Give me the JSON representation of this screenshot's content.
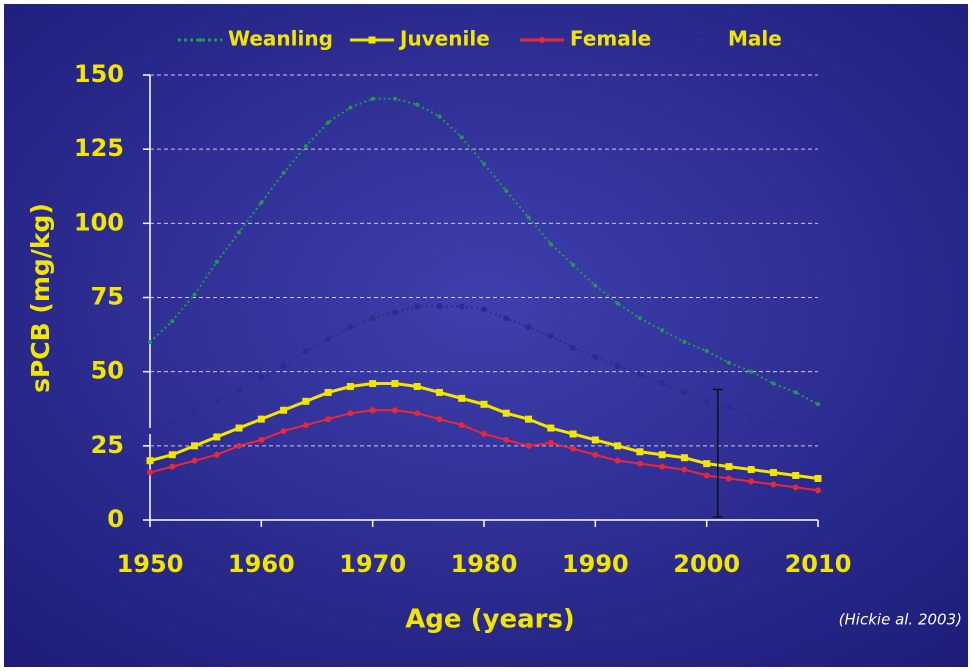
{
  "chart_data": {
    "type": "line",
    "y_label": "sPCB (mg/kg)",
    "x_label": "Age (years)",
    "source": "(Hickie al. 2003)",
    "x": [
      1950,
      1952,
      1954,
      1956,
      1958,
      1960,
      1962,
      1964,
      1966,
      1968,
      1970,
      1972,
      1974,
      1976,
      1978,
      1980,
      1982,
      1984,
      1986,
      1988,
      1990,
      1992,
      1994,
      1996,
      1998,
      2000,
      2002,
      2004,
      2006,
      2008,
      2010
    ],
    "xlim": [
      1950,
      2010
    ],
    "xticks": [
      1950,
      1960,
      1970,
      1980,
      1990,
      2000,
      2010
    ],
    "ylim": [
      0,
      150
    ],
    "yticks": [
      0,
      25,
      50,
      75,
      100,
      125,
      150
    ],
    "grid": true,
    "legend": "top",
    "series": [
      {
        "name": "Weanling",
        "color": "#1f9a52",
        "values": [
          60,
          67,
          76,
          87,
          97,
          107,
          117,
          126,
          134,
          139,
          142,
          142,
          140,
          136,
          129,
          120,
          111,
          102,
          93,
          86,
          79,
          73,
          68,
          64,
          60,
          57,
          53,
          50,
          46,
          43,
          39
        ]
      },
      {
        "name": "Juvenile",
        "color": "#f2e600",
        "values": [
          20,
          22,
          25,
          28,
          31,
          34,
          37,
          40,
          43,
          45,
          46,
          46,
          45,
          43,
          41,
          39,
          36,
          34,
          31,
          29,
          27,
          25,
          23,
          22,
          21,
          19,
          18,
          17,
          16,
          15,
          14
        ]
      },
      {
        "name": "Female",
        "color": "#e8283a",
        "values": [
          16,
          18,
          20,
          22,
          25,
          27,
          30,
          32,
          34,
          36,
          37,
          37,
          36,
          34,
          32,
          29,
          27,
          25,
          26,
          24,
          22,
          20,
          19,
          18,
          17,
          15,
          14,
          13,
          12,
          11,
          10
        ]
      },
      {
        "name": "Male",
        "color": "#2b2b92",
        "values": [
          30,
          33,
          36,
          40,
          44,
          48,
          52,
          57,
          61,
          65,
          68,
          70,
          72,
          72,
          72,
          71,
          68,
          65,
          62,
          58,
          55,
          52,
          49,
          46,
          43,
          40,
          38,
          35,
          33,
          31,
          28
        ]
      }
    ],
    "error_bar": {
      "x": 2001,
      "low": 1,
      "high": 44,
      "color": "#111111"
    }
  }
}
